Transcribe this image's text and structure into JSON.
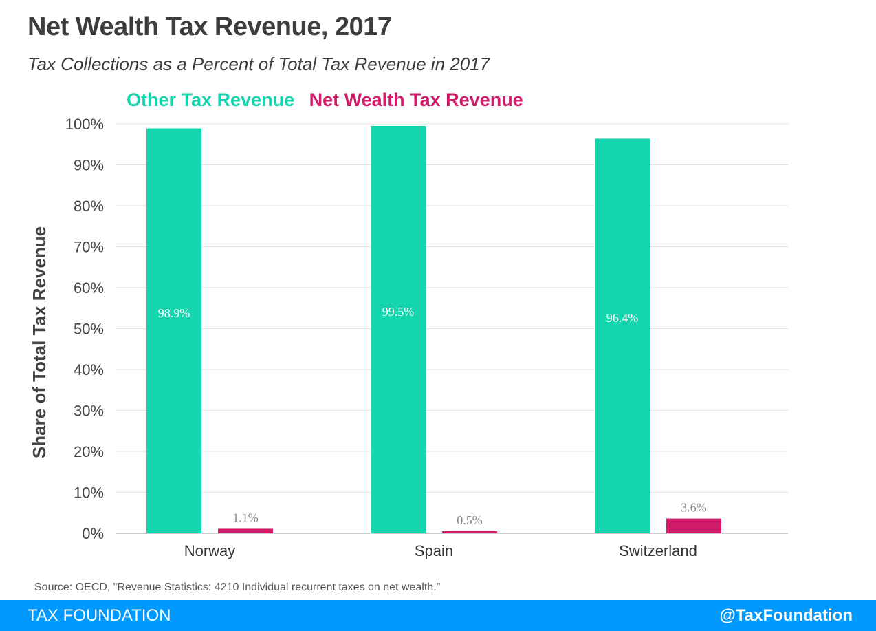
{
  "header": {
    "title": "Net Wealth Tax Revenue, 2017",
    "subtitle": "Tax Collections as a Percent of Total Tax Revenue in 2017"
  },
  "colors": {
    "other": "#14d6ae",
    "wealth": "#d11a6a",
    "footer_bg": "#0099ff"
  },
  "chart_data": {
    "type": "bar",
    "title": "Net Wealth Tax Revenue, 2017",
    "subtitle": "Tax Collections as a Percent of Total Tax Revenue in 2017",
    "ylabel": "Share of Total Tax Revenue",
    "xlabel": "",
    "ylim": [
      0,
      100
    ],
    "yticks": [
      "0%",
      "10%",
      "20%",
      "30%",
      "40%",
      "50%",
      "60%",
      "70%",
      "80%",
      "90%",
      "100%"
    ],
    "categories": [
      "Norway",
      "Spain",
      "Switzerland"
    ],
    "series": [
      {
        "name": "Other Tax Revenue",
        "values": [
          98.9,
          99.5,
          96.4
        ],
        "labels": [
          "98.9%",
          "99.5%",
          "96.4%"
        ]
      },
      {
        "name": "Net Wealth Tax Revenue",
        "values": [
          1.1,
          0.5,
          3.6
        ],
        "labels": [
          "1.1%",
          "0.5%",
          "3.6%"
        ]
      }
    ],
    "grid": true,
    "legend": "top"
  },
  "source": "Source: OECD, \"Revenue Statistics: 4210 Individual recurrent taxes on net wealth.\"",
  "footer": {
    "brand": "TAX FOUNDATION",
    "handle": "@TaxFoundation"
  }
}
